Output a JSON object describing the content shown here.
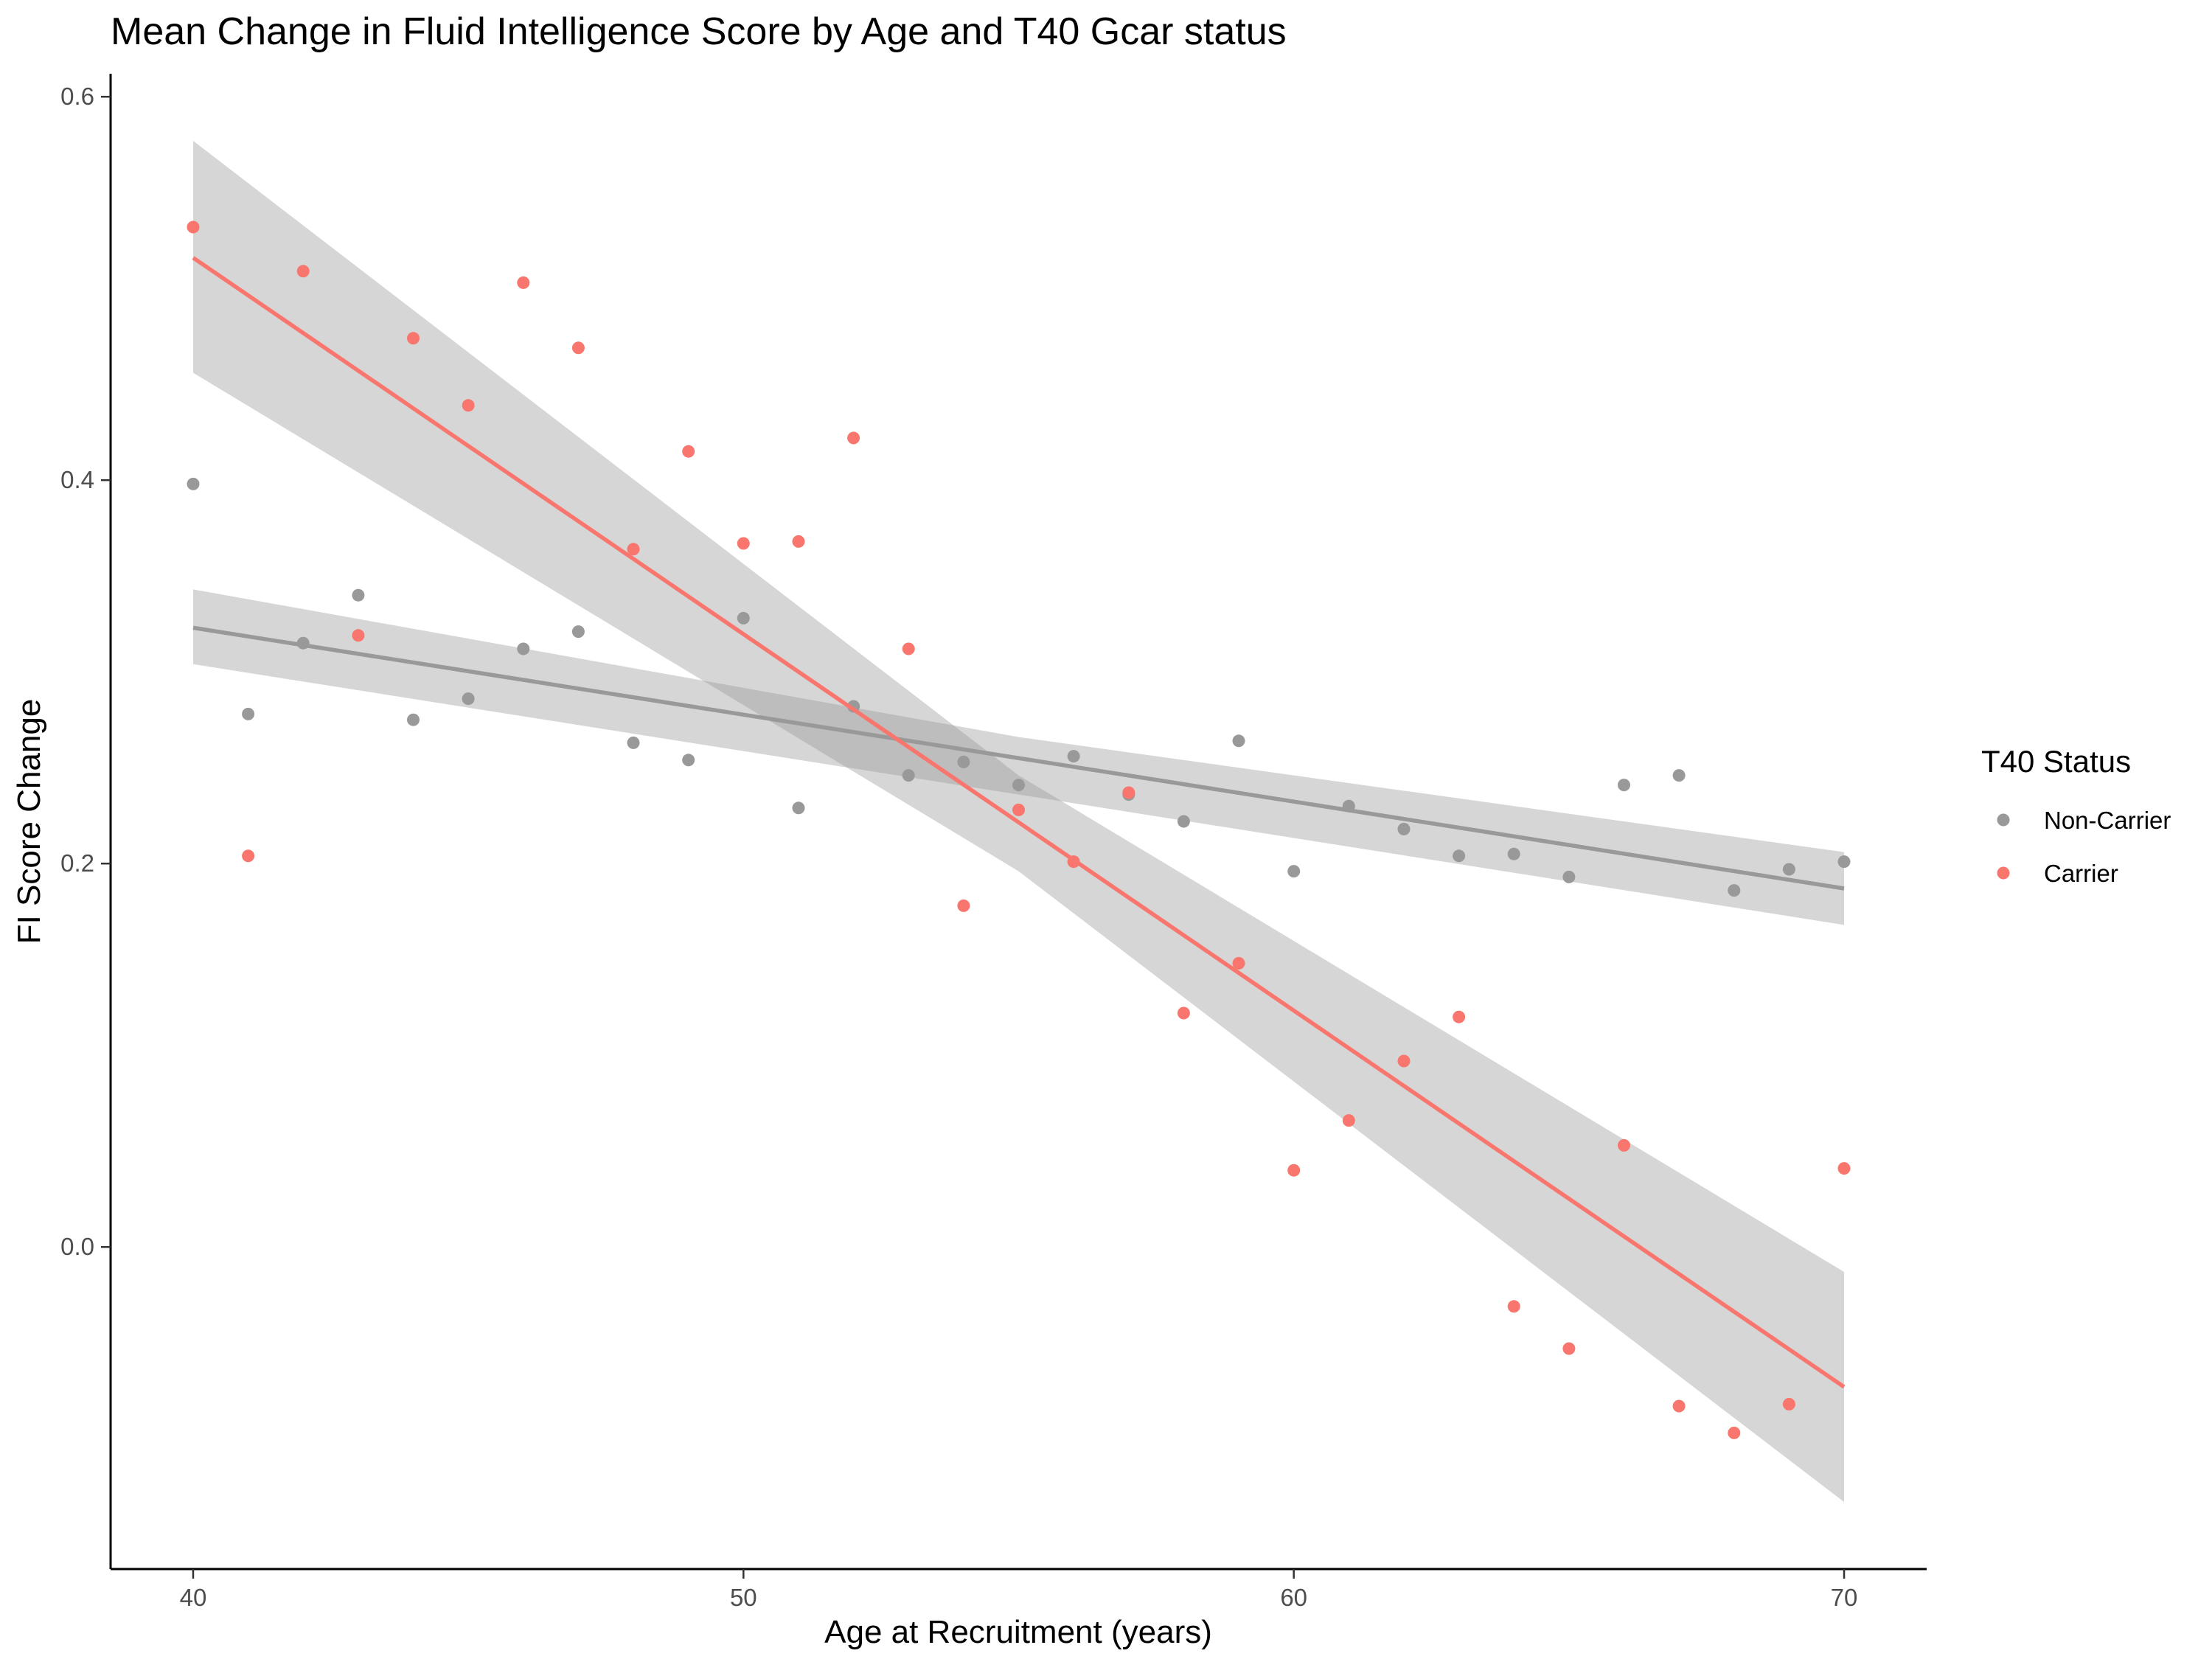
{
  "chart_data": {
    "type": "scatter",
    "title": "Mean Change in Fluid Intelligence Score by Age and T40 Gcar status",
    "xlabel": "Age at Recruitment (years)",
    "ylabel": "FI Score Change",
    "xlim": [
      38.5,
      71.5
    ],
    "ylim": [
      -0.168,
      0.612
    ],
    "x_ticks": [
      40,
      50,
      60,
      70
    ],
    "x_tick_labels": [
      "40",
      "50",
      "60",
      "70"
    ],
    "y_ticks": [
      0.0,
      0.2,
      0.4,
      0.6
    ],
    "y_tick_labels": [
      "0.0",
      "0.2",
      "0.4",
      "0.6"
    ],
    "grid": false,
    "legend": {
      "title": "T40 Status",
      "position": "right"
    },
    "series": [
      {
        "name": "Non-Carrier",
        "color": "#999999",
        "points": [
          [
            40,
            0.398
          ],
          [
            41,
            0.278
          ],
          [
            42,
            0.315
          ],
          [
            43,
            0.34
          ],
          [
            44,
            0.275
          ],
          [
            45,
            0.286
          ],
          [
            46,
            0.312
          ],
          [
            47,
            0.321
          ],
          [
            48,
            0.263
          ],
          [
            49,
            0.254
          ],
          [
            50,
            0.328
          ],
          [
            51,
            0.229
          ],
          [
            52,
            0.282
          ],
          [
            53,
            0.246
          ],
          [
            54,
            0.253
          ],
          [
            55,
            0.241
          ],
          [
            56,
            0.256
          ],
          [
            57,
            0.236
          ],
          [
            58,
            0.222
          ],
          [
            59,
            0.264
          ],
          [
            60,
            0.196
          ],
          [
            61,
            0.23
          ],
          [
            62,
            0.218
          ],
          [
            63,
            0.204
          ],
          [
            64,
            0.205
          ],
          [
            65,
            0.193
          ],
          [
            66,
            0.241
          ],
          [
            67,
            0.246
          ],
          [
            68,
            0.186
          ],
          [
            69,
            0.197
          ],
          [
            70,
            0.201
          ]
        ],
        "fit": {
          "x": [
            40,
            70
          ],
          "y": [
            0.323,
            0.187
          ]
        },
        "ci": {
          "x": [
            40,
            55,
            70
          ],
          "lower": [
            0.304,
            0.236,
            0.168
          ],
          "upper": [
            0.343,
            0.266,
            0.206
          ]
        }
      },
      {
        "name": "Carrier",
        "color": "#F8766D",
        "points": [
          [
            40,
            0.532
          ],
          [
            41,
            0.204
          ],
          [
            42,
            0.509
          ],
          [
            43,
            0.319
          ],
          [
            44,
            0.474
          ],
          [
            45,
            0.439
          ],
          [
            46,
            0.503
          ],
          [
            47,
            0.469
          ],
          [
            48,
            0.364
          ],
          [
            49,
            0.415
          ],
          [
            50,
            0.367
          ],
          [
            51,
            0.368
          ],
          [
            52,
            0.422
          ],
          [
            53,
            0.312
          ],
          [
            54,
            0.178
          ],
          [
            55,
            0.228
          ],
          [
            56,
            0.201
          ],
          [
            57,
            0.237
          ],
          [
            58,
            0.122
          ],
          [
            59,
            0.148
          ],
          [
            60,
            0.04
          ],
          [
            61,
            0.066
          ],
          [
            62,
            0.097
          ],
          [
            63,
            0.12
          ],
          [
            64,
            -0.031
          ],
          [
            65,
            -0.053
          ],
          [
            66,
            0.053
          ],
          [
            67,
            -0.083
          ],
          [
            68,
            -0.097
          ],
          [
            69,
            -0.082
          ],
          [
            70,
            0.041
          ]
        ],
        "fit": {
          "x": [
            40,
            70
          ],
          "y": [
            0.516,
            -0.073
          ]
        },
        "ci": {
          "x": [
            40,
            55,
            70
          ],
          "lower": [
            0.456,
            0.196,
            -0.133
          ],
          "upper": [
            0.577,
            0.246,
            -0.013
          ]
        }
      }
    ]
  }
}
